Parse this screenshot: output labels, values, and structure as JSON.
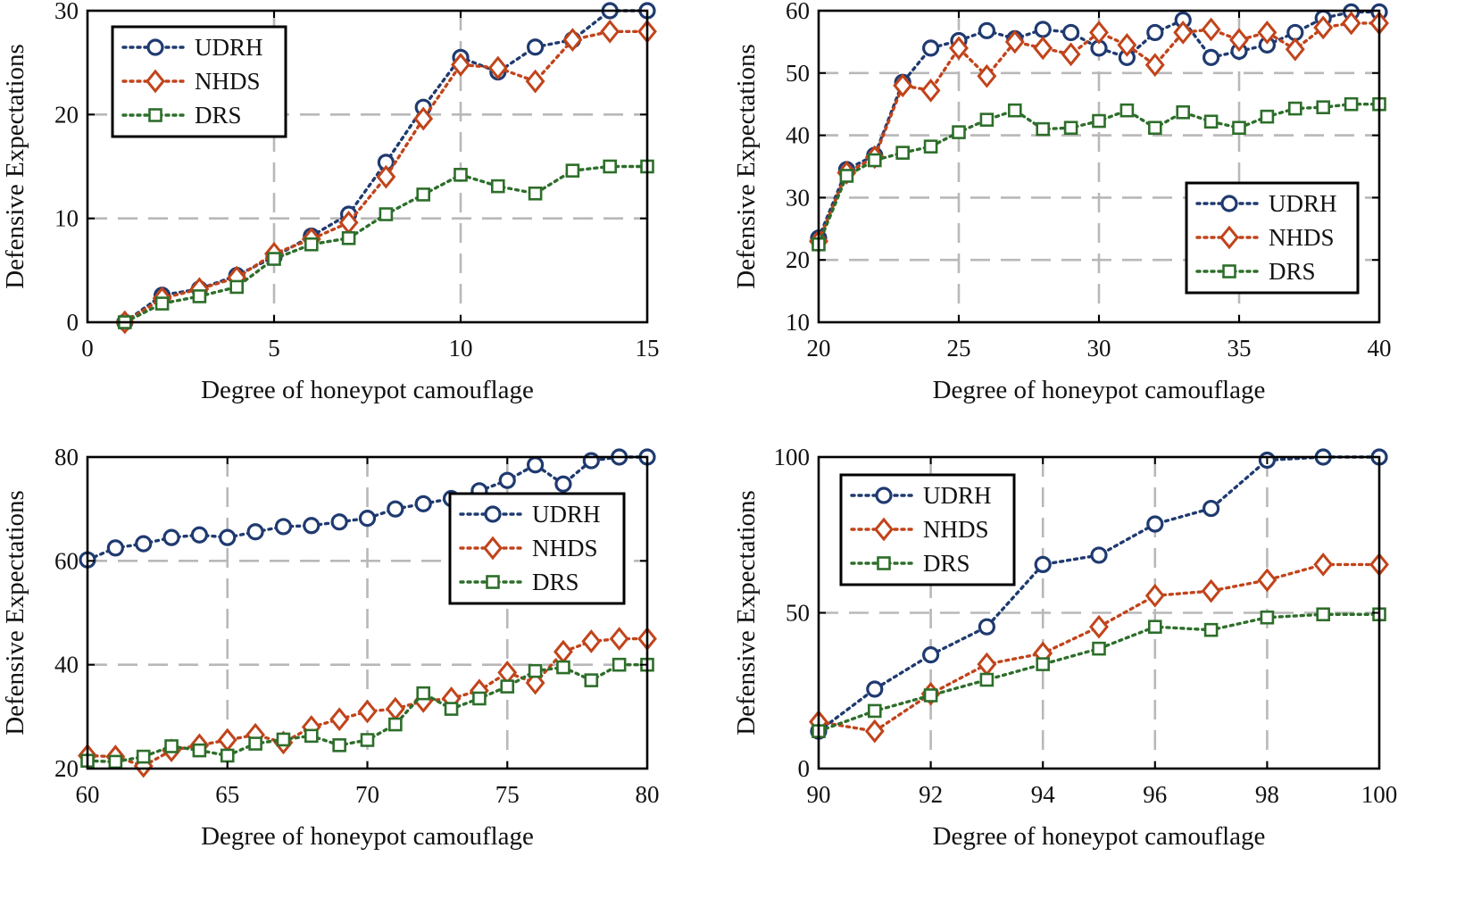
{
  "figure_title": "",
  "colors": {
    "UDRH": "#1f3a70",
    "NHDS": "#c1441b",
    "DRS": "#2d6e2a",
    "grid": "#b8b8b8",
    "axis": "#000000"
  },
  "chart_data": [
    {
      "type": "line",
      "title": "",
      "xlabel": "Degree of honeypot camouflage",
      "ylabel": "Defensive Expectations",
      "xlim": [
        0,
        15
      ],
      "ylim": [
        0,
        30
      ],
      "xticks": [
        0,
        5,
        10,
        15
      ],
      "yticks": [
        0,
        10,
        20,
        30
      ],
      "grid": true,
      "legend_position": "top-left",
      "x": [
        1,
        2,
        3,
        4,
        5,
        6,
        7,
        8,
        9,
        10,
        11,
        12,
        13,
        14,
        15
      ],
      "series": [
        {
          "name": "UDRH",
          "marker": "circle",
          "values": [
            0,
            2.6,
            3.2,
            4.5,
            6.3,
            8.3,
            10.4,
            15.4,
            20.7,
            25.5,
            24.1,
            26.5,
            27.2,
            30,
            30
          ]
        },
        {
          "name": "NHDS",
          "marker": "diamond",
          "values": [
            0,
            2.3,
            3.2,
            4.3,
            6.6,
            8.0,
            9.6,
            14.0,
            19.6,
            24.8,
            24.5,
            23.2,
            27.2,
            28.0,
            28.0
          ]
        },
        {
          "name": "DRS",
          "marker": "square",
          "values": [
            0,
            1.8,
            2.5,
            3.4,
            6.1,
            7.5,
            8.1,
            10.4,
            12.3,
            14.2,
            13.1,
            12.4,
            14.6,
            15.0,
            15.0
          ]
        }
      ]
    },
    {
      "type": "line",
      "title": "",
      "xlabel": "Degree of honeypot camouflage",
      "ylabel": "Defensive Expectations",
      "xlim": [
        20,
        40
      ],
      "ylim": [
        10,
        60
      ],
      "xticks": [
        20,
        25,
        30,
        35,
        40
      ],
      "yticks": [
        10,
        20,
        30,
        40,
        50,
        60
      ],
      "grid": true,
      "legend_position": "middle-right",
      "x": [
        20,
        21,
        22,
        23,
        24,
        25,
        26,
        27,
        28,
        29,
        30,
        31,
        32,
        33,
        34,
        35,
        36,
        37,
        38,
        39,
        40
      ],
      "series": [
        {
          "name": "UDRH",
          "marker": "circle",
          "values": [
            23.5,
            34.5,
            36.8,
            48.5,
            54.0,
            55.2,
            56.8,
            55.5,
            57.0,
            56.5,
            54.0,
            52.5,
            56.5,
            58.5,
            52.5,
            53.5,
            54.5,
            56.5,
            58.8,
            59.8,
            59.8
          ]
        },
        {
          "name": "NHDS",
          "marker": "diamond",
          "values": [
            23.0,
            34.0,
            36.5,
            48.0,
            47.2,
            54.0,
            49.5,
            55.0,
            54.0,
            53.0,
            56.5,
            54.5,
            51.3,
            56.5,
            57.0,
            55.3,
            56.5,
            53.8,
            57.3,
            58.0,
            58.0
          ]
        },
        {
          "name": "DRS",
          "marker": "square",
          "values": [
            22.5,
            33.5,
            36.0,
            37.2,
            38.2,
            40.5,
            42.5,
            44.0,
            41.0,
            41.2,
            42.3,
            44.0,
            41.2,
            43.7,
            42.2,
            41.2,
            43.0,
            44.3,
            44.5,
            45.0,
            45.0
          ]
        }
      ]
    },
    {
      "type": "line",
      "title": "",
      "xlabel": "Degree of honeypot camouflage",
      "ylabel": "Defensive Expectations",
      "xlim": [
        60,
        80
      ],
      "ylim": [
        20,
        80
      ],
      "xticks": [
        60,
        65,
        70,
        75,
        80
      ],
      "yticks": [
        20,
        40,
        60,
        80
      ],
      "grid": true,
      "legend_position": "middle-right",
      "x": [
        60,
        61,
        62,
        63,
        64,
        65,
        66,
        67,
        68,
        69,
        70,
        71,
        72,
        73,
        74,
        75,
        76,
        77,
        78,
        79,
        80
      ],
      "series": [
        {
          "name": "UDRH",
          "marker": "circle",
          "values": [
            60.2,
            62.5,
            63.3,
            64.5,
            65.0,
            64.5,
            65.6,
            66.6,
            66.8,
            67.5,
            68.2,
            70.0,
            71.0,
            72.0,
            73.5,
            75.5,
            78.5,
            74.8,
            79.3,
            80.0,
            80.0
          ]
        },
        {
          "name": "NHDS",
          "marker": "diamond",
          "values": [
            22.5,
            22.3,
            20.5,
            23.5,
            24.5,
            25.5,
            26.5,
            25.0,
            28.0,
            29.5,
            31.0,
            31.5,
            33.0,
            33.5,
            35.0,
            38.5,
            36.5,
            42.5,
            44.5,
            45.0,
            45.0
          ]
        },
        {
          "name": "DRS",
          "marker": "square",
          "values": [
            21.5,
            21.3,
            22.3,
            24.3,
            23.5,
            22.5,
            24.8,
            25.6,
            26.3,
            24.5,
            25.5,
            28.5,
            34.5,
            31.5,
            33.5,
            35.8,
            38.8,
            39.5,
            37.0,
            40.0,
            40.0
          ]
        }
      ]
    },
    {
      "type": "line",
      "title": "",
      "xlabel": "Degree of honeypot camouflage",
      "ylabel": "Defensive Expectations",
      "xlim": [
        90,
        100
      ],
      "ylim": [
        0,
        100
      ],
      "xticks": [
        90,
        92,
        94,
        96,
        98,
        100
      ],
      "yticks": [
        0,
        50,
        100
      ],
      "grid": true,
      "legend_position": "top-left",
      "x": [
        90,
        91,
        92,
        93,
        94,
        95,
        96,
        97,
        98,
        99,
        100
      ],
      "series": [
        {
          "name": "UDRH",
          "marker": "circle",
          "values": [
            12.0,
            25.5,
            36.5,
            45.5,
            65.5,
            68.5,
            78.5,
            83.5,
            99.0,
            100.0,
            100.0
          ]
        },
        {
          "name": "NHDS",
          "marker": "diamond",
          "values": [
            15.0,
            12.0,
            24.0,
            33.5,
            37.0,
            45.5,
            55.5,
            57.0,
            60.5,
            65.5,
            65.5
          ]
        },
        {
          "name": "DRS",
          "marker": "square",
          "values": [
            12.0,
            18.5,
            23.5,
            28.5,
            33.5,
            38.5,
            45.5,
            44.5,
            48.5,
            49.5,
            49.5
          ]
        }
      ]
    }
  ]
}
